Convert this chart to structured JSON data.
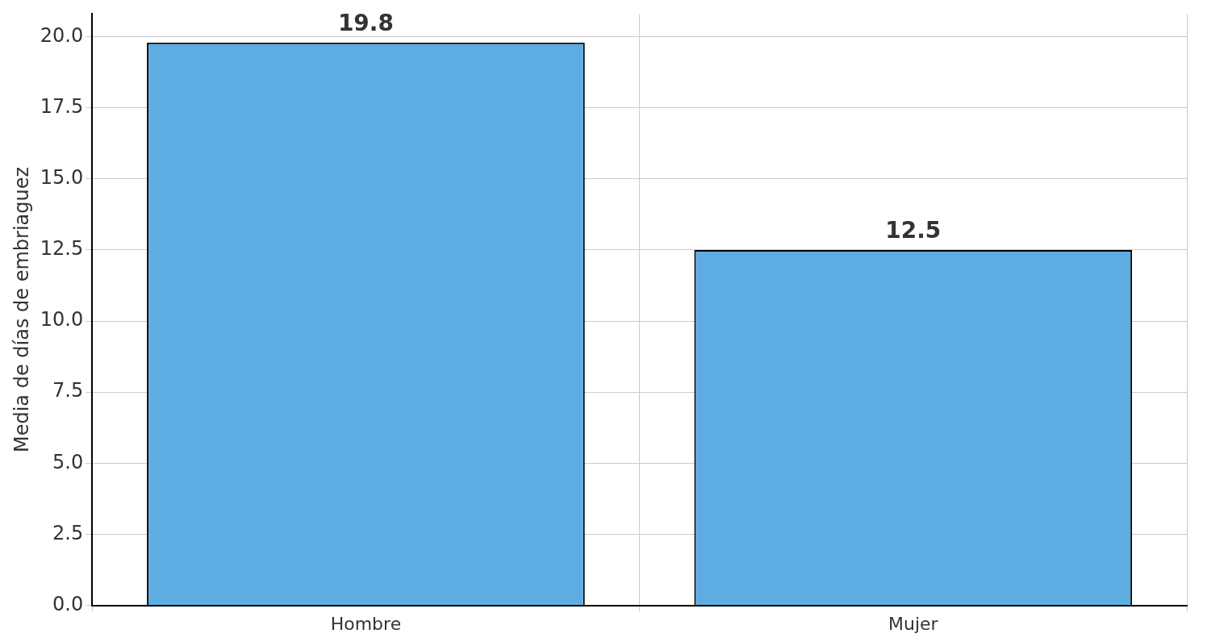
{
  "chart_data": {
    "type": "bar",
    "ylabel": "Media de días de embriaguez",
    "categories": [
      "Hombre",
      "Mujer"
    ],
    "values": [
      19.8,
      12.5
    ],
    "color": "#5dade2",
    "data_labels": true,
    "ylim": [
      0,
      20.8
    ],
    "yticks": [
      {
        "value": 0,
        "label": "0.0"
      },
      {
        "value": 2.5,
        "label": "2.5"
      },
      {
        "value": 5,
        "label": "5.0"
      },
      {
        "value": 7.5,
        "label": "7.5"
      },
      {
        "value": 10,
        "label": "10.0"
      },
      {
        "value": 12.5,
        "label": "12.5"
      },
      {
        "value": 15,
        "label": "15.0"
      },
      {
        "value": 17.5,
        "label": "17.5"
      },
      {
        "value": 20,
        "label": "20.0"
      }
    ],
    "grid": true,
    "legend": false
  }
}
